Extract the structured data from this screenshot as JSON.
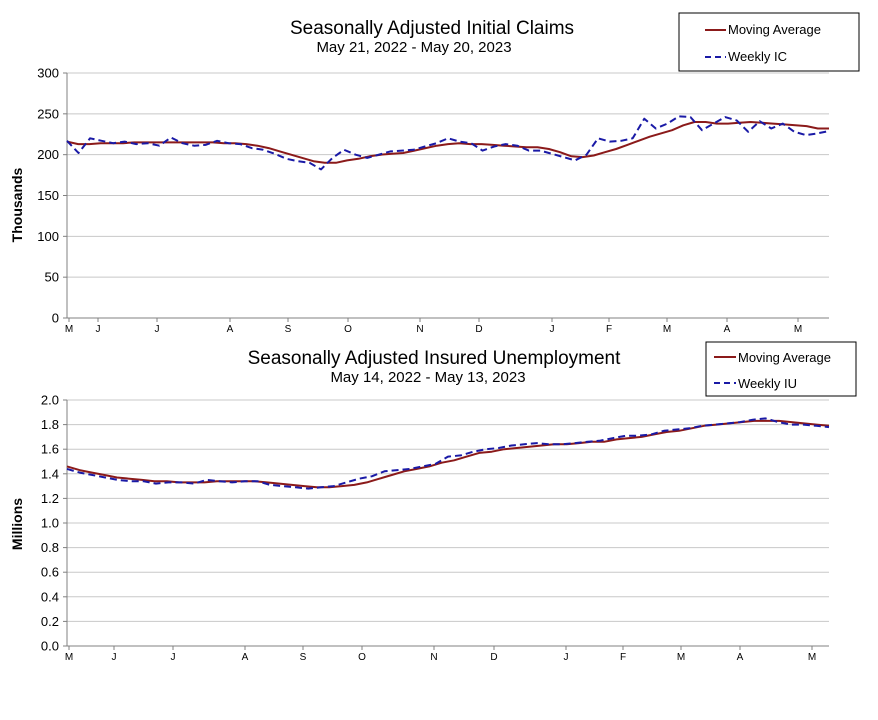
{
  "colors": {
    "moving_average": "#8b1a1a",
    "weekly": "#1a1aa6",
    "grid": "#c8c8c8",
    "axis": "#808080"
  },
  "chart_data": [
    {
      "type": "line",
      "title": "Seasonally Adjusted Initial Claims",
      "subtitle": "May 21, 2022 - May 20, 2023",
      "ylabel": "Thousands",
      "ylim": [
        0,
        300
      ],
      "yticks": [
        "0",
        "50",
        "100",
        "150",
        "200",
        "250",
        "300"
      ],
      "month_labels": [
        "M",
        "J",
        "J",
        "A",
        "S",
        "O",
        "N",
        "D",
        "J",
        "F",
        "M",
        "A",
        "M"
      ],
      "legend": [
        "Moving Average",
        "Weekly IC"
      ],
      "legend_position": "top-right",
      "grid": true,
      "series": [
        {
          "name": "Moving Average",
          "style": "solid",
          "values": [
            216,
            213,
            213,
            214,
            214,
            214,
            215,
            215,
            215,
            215,
            215,
            215,
            215,
            215,
            214,
            214,
            213,
            211,
            208,
            204,
            200,
            196,
            192,
            190,
            190,
            193,
            195,
            198,
            200,
            201,
            202,
            205,
            208,
            211,
            213,
            214,
            213,
            213,
            212,
            211,
            210,
            209,
            209,
            207,
            203,
            198,
            197,
            199,
            203,
            207,
            212,
            217,
            222,
            226,
            230,
            236,
            240,
            240,
            238,
            238,
            239,
            240,
            239,
            238,
            237,
            236,
            235,
            232,
            232
          ]
        },
        {
          "name": "Weekly IC",
          "style": "dashed",
          "values": [
            217,
            202,
            220,
            217,
            214,
            216,
            213,
            214,
            211,
            221,
            214,
            211,
            212,
            217,
            214,
            213,
            208,
            206,
            201,
            195,
            192,
            190,
            182,
            196,
            206,
            200,
            196,
            200,
            204,
            205,
            206,
            210,
            214,
            220,
            216,
            214,
            205,
            210,
            213,
            211,
            205,
            205,
            201,
            197,
            193,
            200,
            220,
            216,
            217,
            220,
            244,
            232,
            238,
            247,
            246,
            230,
            238,
            246,
            242,
            228,
            241,
            232,
            238,
            228,
            224,
            226,
            229
          ]
        }
      ]
    },
    {
      "type": "line",
      "title": "Seasonally Adjusted Insured Unemployment",
      "subtitle": "May 14, 2022 - May 13, 2023",
      "ylabel": "Millions",
      "ylim": [
        0.0,
        2.0
      ],
      "yticks": [
        "0.0",
        "0.2",
        "0.4",
        "0.6",
        "0.8",
        "1.0",
        "1.2",
        "1.4",
        "1.6",
        "1.8",
        "2.0"
      ],
      "month_labels": [
        "M",
        "J",
        "J",
        "A",
        "S",
        "O",
        "N",
        "D",
        "J",
        "F",
        "M",
        "A",
        "M"
      ],
      "legend": [
        "Moving Average",
        "Weekly IU"
      ],
      "legend_position": "top-right",
      "grid": true,
      "series": [
        {
          "name": "Moving Average",
          "style": "solid",
          "values": [
            1.46,
            1.43,
            1.41,
            1.39,
            1.37,
            1.36,
            1.35,
            1.34,
            1.34,
            1.33,
            1.33,
            1.33,
            1.34,
            1.34,
            1.34,
            1.34,
            1.33,
            1.32,
            1.31,
            1.3,
            1.29,
            1.29,
            1.3,
            1.31,
            1.33,
            1.36,
            1.39,
            1.42,
            1.44,
            1.46,
            1.49,
            1.51,
            1.54,
            1.57,
            1.58,
            1.6,
            1.61,
            1.62,
            1.63,
            1.64,
            1.64,
            1.65,
            1.66,
            1.66,
            1.68,
            1.69,
            1.7,
            1.72,
            1.74,
            1.75,
            1.77,
            1.79,
            1.8,
            1.81,
            1.82,
            1.83,
            1.83,
            1.83,
            1.82,
            1.81,
            1.8,
            1.79
          ]
        },
        {
          "name": "Weekly IU",
          "style": "dashed",
          "values": [
            1.44,
            1.41,
            1.39,
            1.37,
            1.35,
            1.34,
            1.34,
            1.32,
            1.33,
            1.33,
            1.32,
            1.35,
            1.34,
            1.33,
            1.34,
            1.34,
            1.31,
            1.3,
            1.29,
            1.28,
            1.29,
            1.3,
            1.33,
            1.36,
            1.38,
            1.42,
            1.43,
            1.44,
            1.46,
            1.48,
            1.54,
            1.55,
            1.58,
            1.6,
            1.61,
            1.63,
            1.64,
            1.65,
            1.64,
            1.64,
            1.65,
            1.66,
            1.67,
            1.69,
            1.71,
            1.71,
            1.72,
            1.75,
            1.76,
            1.77,
            1.79,
            1.8,
            1.81,
            1.82,
            1.84,
            1.85,
            1.82,
            1.8,
            1.8,
            1.79,
            1.78
          ]
        }
      ]
    }
  ]
}
